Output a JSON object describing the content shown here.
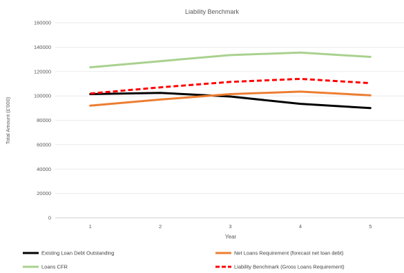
{
  "chart_data": {
    "type": "line",
    "title": "Liability Benchmark",
    "xlabel": "Year",
    "ylabel": "Total Amount (£'000)",
    "categories": [
      "1",
      "2",
      "3",
      "4",
      "5"
    ],
    "ylim": [
      0,
      160000
    ],
    "yticks": [
      "0",
      "20000",
      "40000",
      "60000",
      "80000",
      "100000",
      "120000",
      "140000",
      "160000"
    ],
    "grid": true,
    "legend_position": "bottom",
    "series": [
      {
        "name": "Existing Loan Debt Outstanding",
        "values": [
          101500,
          102500,
          99500,
          93500,
          90000
        ],
        "color": "#000000",
        "style": "solid"
      },
      {
        "name": "Net Loans Requirement (forecast net loan debt)",
        "values": [
          92000,
          97000,
          101500,
          103500,
          100500
        ],
        "color": "#ed7d31",
        "style": "solid"
      },
      {
        "name": "Loans CFR",
        "values": [
          123500,
          128500,
          133500,
          135500,
          132000
        ],
        "color": "#a9d18e",
        "style": "solid"
      },
      {
        "name": "Liability Benchmark (Gross Loans Requirement)",
        "values": [
          102000,
          107000,
          111500,
          114000,
          110500
        ],
        "color": "#ff0000",
        "style": "dashed"
      }
    ]
  }
}
